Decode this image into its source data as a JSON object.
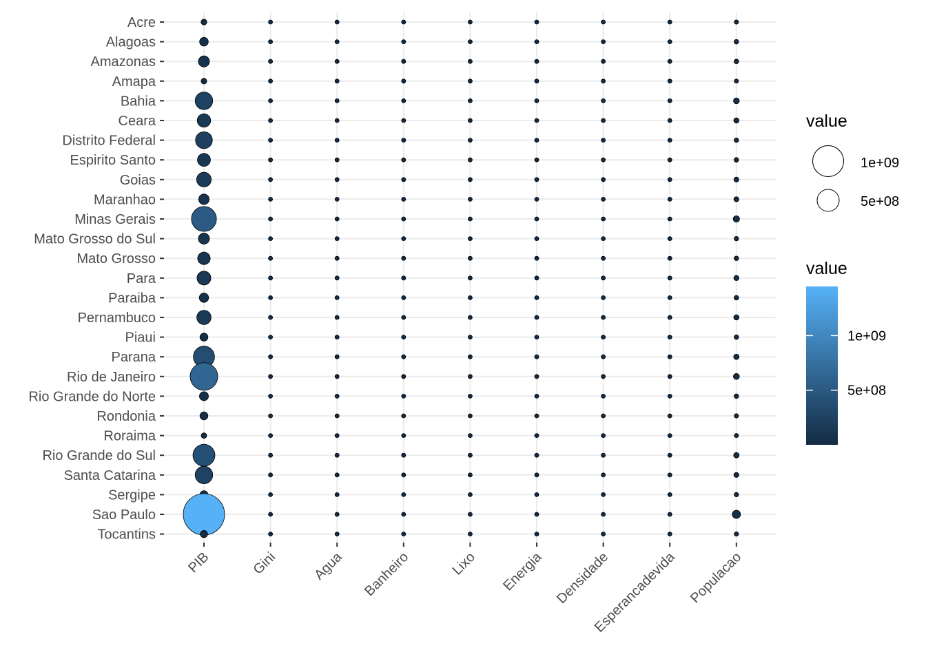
{
  "chart_data": {
    "type": "scatter",
    "subtype": "bubble-matrix",
    "title": "",
    "xlabel": "",
    "ylabel": "",
    "x_categories": [
      "PIB",
      "Gini",
      "Agua",
      "Banheiro",
      "Lixo",
      "Energia",
      "Densidade",
      "Esperancadevida",
      "Populacao"
    ],
    "y_categories": [
      "Acre",
      "Alagoas",
      "Amazonas",
      "Amapa",
      "Bahia",
      "Ceara",
      "Distrito Federal",
      "Espirito Santo",
      "Goias",
      "Maranhao",
      "Minas Gerais",
      "Mato Grosso do Sul",
      "Mato Grosso",
      "Para",
      "Paraiba",
      "Pernambuco",
      "Piaui",
      "Parana",
      "Rio de Janeiro",
      "Rio Grande do Norte",
      "Rondonia",
      "Roraima",
      "Rio Grande do Sul",
      "Santa Catarina",
      "Sergipe",
      "Sao Paulo",
      "Tocantins"
    ],
    "values": {
      "PIB": [
        14000000,
        50000000,
        90000000,
        13000000,
        250000000,
        140000000,
        230000000,
        130000000,
        170000000,
        80000000,
        520000000,
        90000000,
        120000000,
        150000000,
        60000000,
        160000000,
        40000000,
        370000000,
        640000000,
        55000000,
        40000000,
        11000000,
        400000000,
        250000000,
        40000000,
        1450000000,
        30000000
      ],
      "Gini": [
        0.6,
        0.6,
        0.6,
        0.6,
        0.6,
        0.6,
        0.6,
        0.6,
        0.6,
        0.6,
        0.6,
        0.6,
        0.6,
        0.6,
        0.6,
        0.6,
        0.6,
        0.6,
        0.6,
        0.6,
        0.6,
        0.6,
        0.6,
        0.6,
        0.6,
        0.6,
        0.6
      ],
      "Agua": [
        0.6,
        0.6,
        0.6,
        0.6,
        0.6,
        0.6,
        0.6,
        0.6,
        0.6,
        0.6,
        0.6,
        0.6,
        0.6,
        0.6,
        0.6,
        0.6,
        0.6,
        0.6,
        0.6,
        0.6,
        0.6,
        0.6,
        0.6,
        0.6,
        0.6,
        0.6,
        0.6
      ],
      "Banheiro": [
        0.8,
        0.8,
        0.8,
        0.8,
        0.8,
        0.8,
        0.8,
        0.8,
        0.8,
        0.8,
        0.8,
        0.8,
        0.8,
        0.8,
        0.8,
        0.8,
        0.8,
        0.8,
        0.8,
        0.8,
        0.8,
        0.8,
        0.8,
        0.8,
        0.8,
        0.8,
        0.8
      ],
      "Lixo": [
        0.9,
        0.9,
        0.9,
        0.9,
        0.9,
        0.9,
        0.9,
        0.9,
        0.9,
        0.9,
        0.9,
        0.9,
        0.9,
        0.9,
        0.9,
        0.9,
        0.9,
        0.9,
        0.9,
        0.9,
        0.9,
        0.9,
        0.9,
        0.9,
        0.9,
        0.9,
        0.9
      ],
      "Energia": [
        0.98,
        0.98,
        0.98,
        0.98,
        0.98,
        0.98,
        0.98,
        0.98,
        0.98,
        0.98,
        0.98,
        0.98,
        0.98,
        0.98,
        0.98,
        0.98,
        0.98,
        0.98,
        0.98,
        0.98,
        0.98,
        0.98,
        0.98,
        0.98,
        0.98,
        0.98,
        0.98
      ],
      "Densidade": [
        5,
        110,
        2,
        5,
        25,
        55,
        440,
        75,
        17,
        20,
        33,
        7,
        3,
        6,
        65,
        90,
        12,
        52,
        365,
        60,
        7,
        2,
        38,
        65,
        94,
        166,
        5
      ],
      "Esperancadevida": [
        72,
        70,
        71,
        72,
        72,
        72,
        77,
        76,
        74,
        69,
        75,
        75,
        73,
        72,
        72,
        72,
        70,
        76,
        75,
        75,
        71,
        71,
        77,
        78,
        72,
        77,
        72
      ],
      "Populacao": [
        800000,
        3300000,
        3900000,
        750000,
        15000000,
        9000000,
        2900000,
        3900000,
        6500000,
        6900000,
        20500000,
        2600000,
        3200000,
        8100000,
        3900000,
        9300000,
        3200000,
        11000000,
        16400000,
        3400000,
        1700000,
        500000,
        11200000,
        6700000,
        2200000,
        44000000,
        1500000
      ]
    },
    "size_legend": {
      "title": "value",
      "labels": [
        "1e+09",
        "5e+08"
      ],
      "values": [
        1000000000,
        500000000
      ]
    },
    "color_legend": {
      "title": "value",
      "labels": [
        "1e+09",
        "5e+08"
      ],
      "values": [
        1000000000,
        500000000
      ],
      "range": [
        0,
        1450000000
      ],
      "low_color": "#132B43",
      "high_color": "#56B1F7"
    },
    "grid": true,
    "point_stroke": "#000000"
  }
}
